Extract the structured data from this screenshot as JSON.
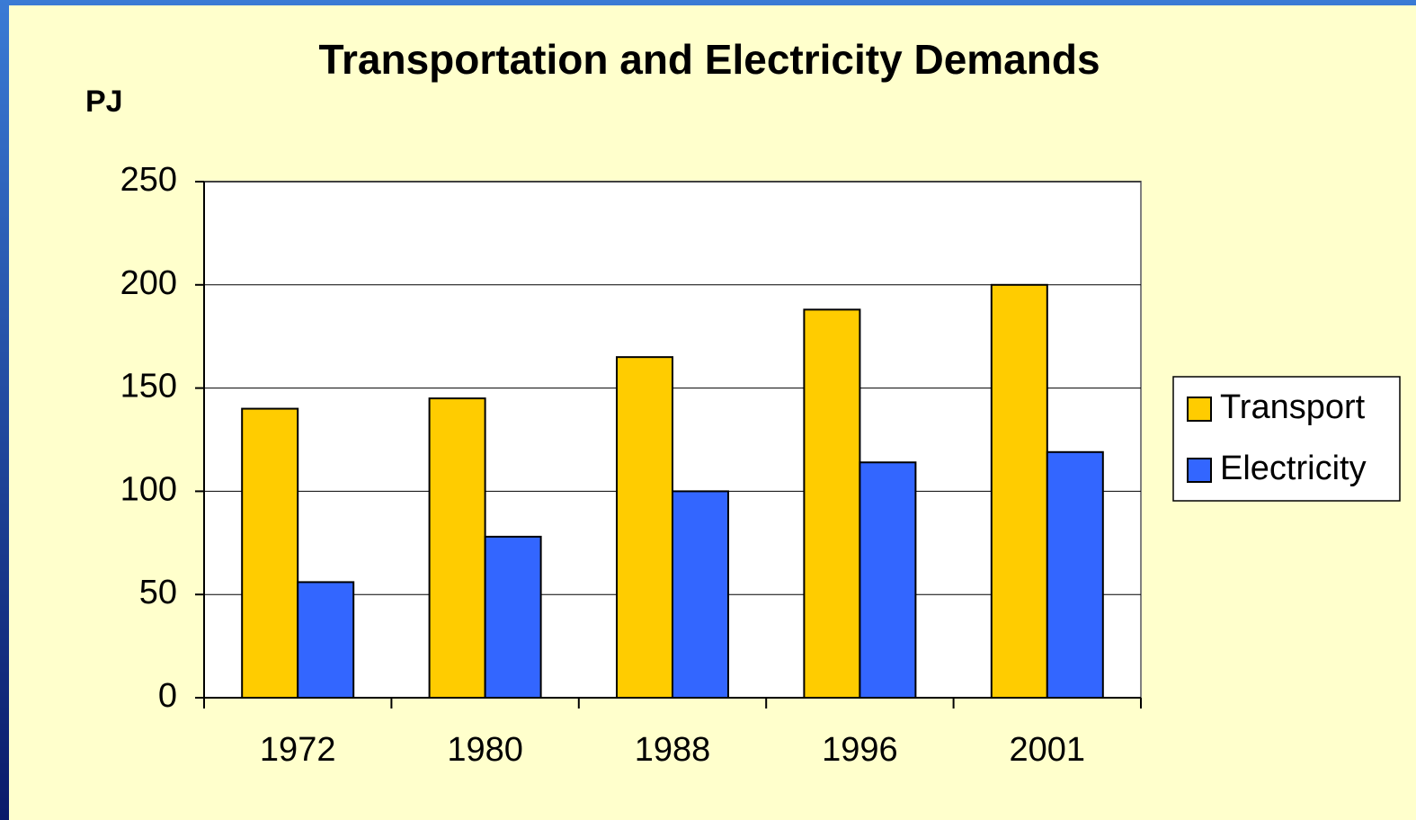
{
  "chart_data": {
    "type": "bar",
    "title": "Transportation and Electricity Demands",
    "y_label": "PJ",
    "categories": [
      "1972",
      "1980",
      "1988",
      "1996",
      "2001"
    ],
    "series": [
      {
        "name": "Transport",
        "color": "#ffcc00",
        "values": [
          140,
          145,
          165,
          188,
          200
        ]
      },
      {
        "name": "Electricity",
        "color": "#3366ff",
        "values": [
          56,
          78,
          100,
          114,
          119
        ]
      }
    ],
    "ylim": [
      0,
      250
    ],
    "yticks": [
      0,
      50,
      100,
      150,
      200,
      250
    ],
    "grid": true,
    "legend": "right"
  }
}
